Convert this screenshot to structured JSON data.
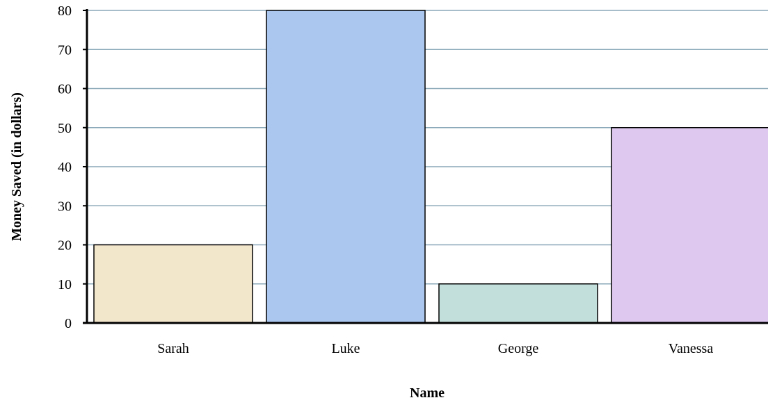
{
  "chart_data": {
    "type": "bar",
    "title": "",
    "xlabel": "Name",
    "ylabel": "Money Saved (in dollars)",
    "categories": [
      "Sarah",
      "Luke",
      "George",
      "Vanessa"
    ],
    "values": [
      20,
      80,
      10,
      50
    ],
    "ylim": [
      0,
      80
    ],
    "yticks": [
      "0",
      "10",
      "20",
      "30",
      "40",
      "50",
      "60",
      "70",
      "80"
    ],
    "grid": true,
    "legend": "none",
    "colors": {
      "bars": [
        "#f2e6cb",
        "#abc7ef",
        "#c2dfdb",
        "#dec8ef"
      ],
      "gridline": "#8aa8b8",
      "bar_outline": "#000000",
      "axis": "#000000"
    }
  }
}
